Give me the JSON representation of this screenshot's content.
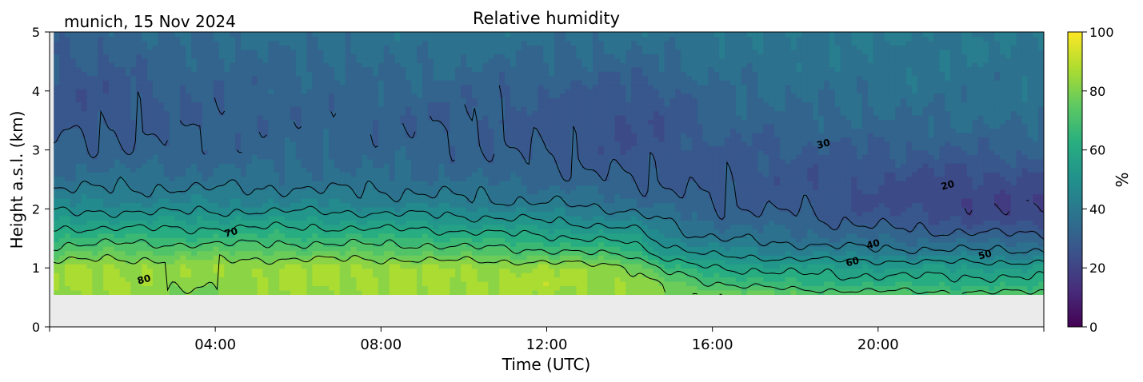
{
  "chart_data": {
    "type": "heatmap",
    "title": "Relative humidity",
    "subtitle": "munich, 15 Nov 2024",
    "xlabel": "Time (UTC)",
    "ylabel": "Height a.s.l. (km)",
    "x_unit": "hours UTC",
    "xlim": [
      0,
      24
    ],
    "ylim": [
      0,
      5
    ],
    "x_ticks": [
      4,
      8,
      12,
      16,
      20
    ],
    "x_tick_labels": [
      "04:00",
      "08:00",
      "12:00",
      "16:00",
      "20:00"
    ],
    "y_ticks": [
      0,
      1,
      2,
      3,
      4,
      5
    ],
    "y_tick_labels": [
      "0",
      "1",
      "2",
      "3",
      "4",
      "5"
    ],
    "data_bottom_km": 0.55,
    "colorbar": {
      "label": "%",
      "range": [
        0,
        100
      ],
      "ticks": [
        0,
        20,
        40,
        60,
        80,
        100
      ],
      "tick_labels": [
        "0",
        "20",
        "40",
        "60",
        "80",
        "100"
      ],
      "colormap": "viridis"
    },
    "contour_levels": [
      20,
      30,
      40,
      50,
      60,
      70,
      80
    ],
    "contour_labels": [
      {
        "text": "80",
        "x": 2.3,
        "y": 0.75
      },
      {
        "text": "70",
        "x": 4.4,
        "y": 1.55
      },
      {
        "text": "30",
        "x": 18.7,
        "y": 3.05
      },
      {
        "text": "20",
        "x": 21.7,
        "y": 2.35
      },
      {
        "text": "40",
        "x": 19.9,
        "y": 1.35
      },
      {
        "text": "60",
        "x": 19.4,
        "y": 1.05
      },
      {
        "text": "50",
        "x": 22.6,
        "y": 1.17
      }
    ],
    "profiles": [
      {
        "t": 0.1,
        "rh": [
          [
            0.55,
            84
          ],
          [
            0.7,
            86
          ],
          [
            1.0,
            85
          ],
          [
            1.25,
            74
          ],
          [
            1.5,
            66
          ],
          [
            1.8,
            55
          ],
          [
            2.1,
            45
          ],
          [
            2.5,
            37
          ],
          [
            3.0,
            32
          ],
          [
            3.5,
            27
          ],
          [
            4.0,
            26
          ],
          [
            4.5,
            29
          ],
          [
            5.0,
            32
          ]
        ]
      },
      {
        "t": 1.5,
        "rh": [
          [
            0.55,
            85
          ],
          [
            0.7,
            87
          ],
          [
            1.0,
            86
          ],
          [
            1.25,
            76
          ],
          [
            1.5,
            67
          ],
          [
            1.8,
            55
          ],
          [
            2.1,
            45
          ],
          [
            2.5,
            37
          ],
          [
            3.0,
            31
          ],
          [
            3.5,
            28
          ],
          [
            4.0,
            27
          ],
          [
            4.5,
            30
          ],
          [
            5.0,
            33
          ]
        ]
      },
      {
        "t": 3.0,
        "rh": [
          [
            0.55,
            78
          ],
          [
            0.7,
            80
          ],
          [
            1.0,
            84
          ],
          [
            1.25,
            76
          ],
          [
            1.5,
            66
          ],
          [
            1.8,
            55
          ],
          [
            2.1,
            45
          ],
          [
            2.5,
            37
          ],
          [
            3.0,
            32
          ],
          [
            3.5,
            30
          ],
          [
            4.0,
            31
          ],
          [
            4.5,
            33
          ],
          [
            5.0,
            36
          ]
        ]
      },
      {
        "t": 6.0,
        "rh": [
          [
            0.55,
            84
          ],
          [
            0.7,
            86
          ],
          [
            1.0,
            86
          ],
          [
            1.25,
            76
          ],
          [
            1.5,
            67
          ],
          [
            1.8,
            56
          ],
          [
            2.1,
            45
          ],
          [
            2.5,
            37
          ],
          [
            3.0,
            33
          ],
          [
            3.5,
            32
          ],
          [
            4.0,
            33
          ],
          [
            4.5,
            34
          ],
          [
            5.0,
            37
          ]
        ]
      },
      {
        "t": 9.0,
        "rh": [
          [
            0.55,
            85
          ],
          [
            0.7,
            86
          ],
          [
            1.0,
            86
          ],
          [
            1.25,
            75
          ],
          [
            1.5,
            66
          ],
          [
            1.8,
            54
          ],
          [
            2.1,
            43
          ],
          [
            2.5,
            36
          ],
          [
            3.0,
            33
          ],
          [
            3.5,
            31
          ],
          [
            4.0,
            33
          ],
          [
            4.5,
            36
          ],
          [
            5.0,
            38
          ]
        ]
      },
      {
        "t": 12.0,
        "rh": [
          [
            0.55,
            85
          ],
          [
            0.7,
            87
          ],
          [
            1.0,
            85
          ],
          [
            1.25,
            72
          ],
          [
            1.5,
            62
          ],
          [
            1.8,
            50
          ],
          [
            2.1,
            40
          ],
          [
            2.5,
            33
          ],
          [
            3.0,
            29
          ],
          [
            3.5,
            28
          ],
          [
            4.0,
            30
          ],
          [
            4.5,
            34
          ],
          [
            5.0,
            37
          ]
        ]
      },
      {
        "t": 14.0,
        "rh": [
          [
            0.55,
            84
          ],
          [
            0.7,
            85
          ],
          [
            1.0,
            82
          ],
          [
            1.25,
            68
          ],
          [
            1.5,
            57
          ],
          [
            1.8,
            45
          ],
          [
            2.1,
            36
          ],
          [
            2.5,
            30
          ],
          [
            3.0,
            26
          ],
          [
            3.5,
            25
          ],
          [
            4.0,
            28
          ],
          [
            4.5,
            33
          ],
          [
            5.0,
            37
          ]
        ]
      },
      {
        "t": 15.0,
        "rh": [
          [
            0.55,
            80
          ],
          [
            0.7,
            78
          ],
          [
            1.0,
            66
          ],
          [
            1.25,
            54
          ],
          [
            1.5,
            45
          ],
          [
            1.8,
            38
          ],
          [
            2.1,
            33
          ],
          [
            2.5,
            29
          ],
          [
            3.0,
            27
          ],
          [
            3.5,
            27
          ],
          [
            4.0,
            30
          ],
          [
            4.5,
            35
          ],
          [
            5.0,
            38
          ]
        ]
      },
      {
        "t": 16.0,
        "rh": [
          [
            0.55,
            80
          ],
          [
            0.7,
            72
          ],
          [
            1.0,
            60
          ],
          [
            1.25,
            48
          ],
          [
            1.5,
            40
          ],
          [
            1.8,
            34
          ],
          [
            2.1,
            30
          ],
          [
            2.5,
            28
          ],
          [
            3.0,
            29
          ],
          [
            3.5,
            32
          ],
          [
            4.0,
            34
          ],
          [
            4.5,
            37
          ],
          [
            5.0,
            39
          ]
        ]
      },
      {
        "t": 18.0,
        "rh": [
          [
            0.55,
            75
          ],
          [
            0.7,
            66
          ],
          [
            1.0,
            57
          ],
          [
            1.25,
            45
          ],
          [
            1.5,
            37
          ],
          [
            1.8,
            32
          ],
          [
            2.1,
            28
          ],
          [
            2.5,
            27
          ],
          [
            3.0,
            29
          ],
          [
            3.5,
            33
          ],
          [
            4.0,
            36
          ],
          [
            4.5,
            38
          ],
          [
            5.0,
            40
          ]
        ]
      },
      {
        "t": 20.0,
        "rh": [
          [
            0.55,
            73
          ],
          [
            0.7,
            65
          ],
          [
            1.0,
            56
          ],
          [
            1.25,
            43
          ],
          [
            1.5,
            34
          ],
          [
            1.8,
            28
          ],
          [
            2.1,
            24
          ],
          [
            2.5,
            25
          ],
          [
            3.0,
            30
          ],
          [
            3.5,
            34
          ],
          [
            4.0,
            37
          ],
          [
            4.5,
            38
          ],
          [
            5.0,
            40
          ]
        ]
      },
      {
        "t": 22.0,
        "rh": [
          [
            0.55,
            72
          ],
          [
            0.7,
            65
          ],
          [
            1.0,
            55
          ],
          [
            1.25,
            42
          ],
          [
            1.5,
            33
          ],
          [
            1.8,
            25
          ],
          [
            2.1,
            21
          ],
          [
            2.5,
            23
          ],
          [
            3.0,
            30
          ],
          [
            3.5,
            35
          ],
          [
            4.0,
            37
          ],
          [
            4.5,
            39
          ],
          [
            5.0,
            40
          ]
        ]
      },
      {
        "t": 24.0,
        "rh": [
          [
            0.55,
            72
          ],
          [
            0.7,
            64
          ],
          [
            1.0,
            55
          ],
          [
            1.25,
            42
          ],
          [
            1.5,
            32
          ],
          [
            1.8,
            22
          ],
          [
            2.1,
            20
          ],
          [
            2.5,
            24
          ],
          [
            3.0,
            32
          ],
          [
            3.5,
            36
          ],
          [
            4.0,
            38
          ],
          [
            4.5,
            39
          ],
          [
            5.0,
            40
          ]
        ]
      }
    ],
    "grid": false,
    "legend": "colorbar-right"
  }
}
